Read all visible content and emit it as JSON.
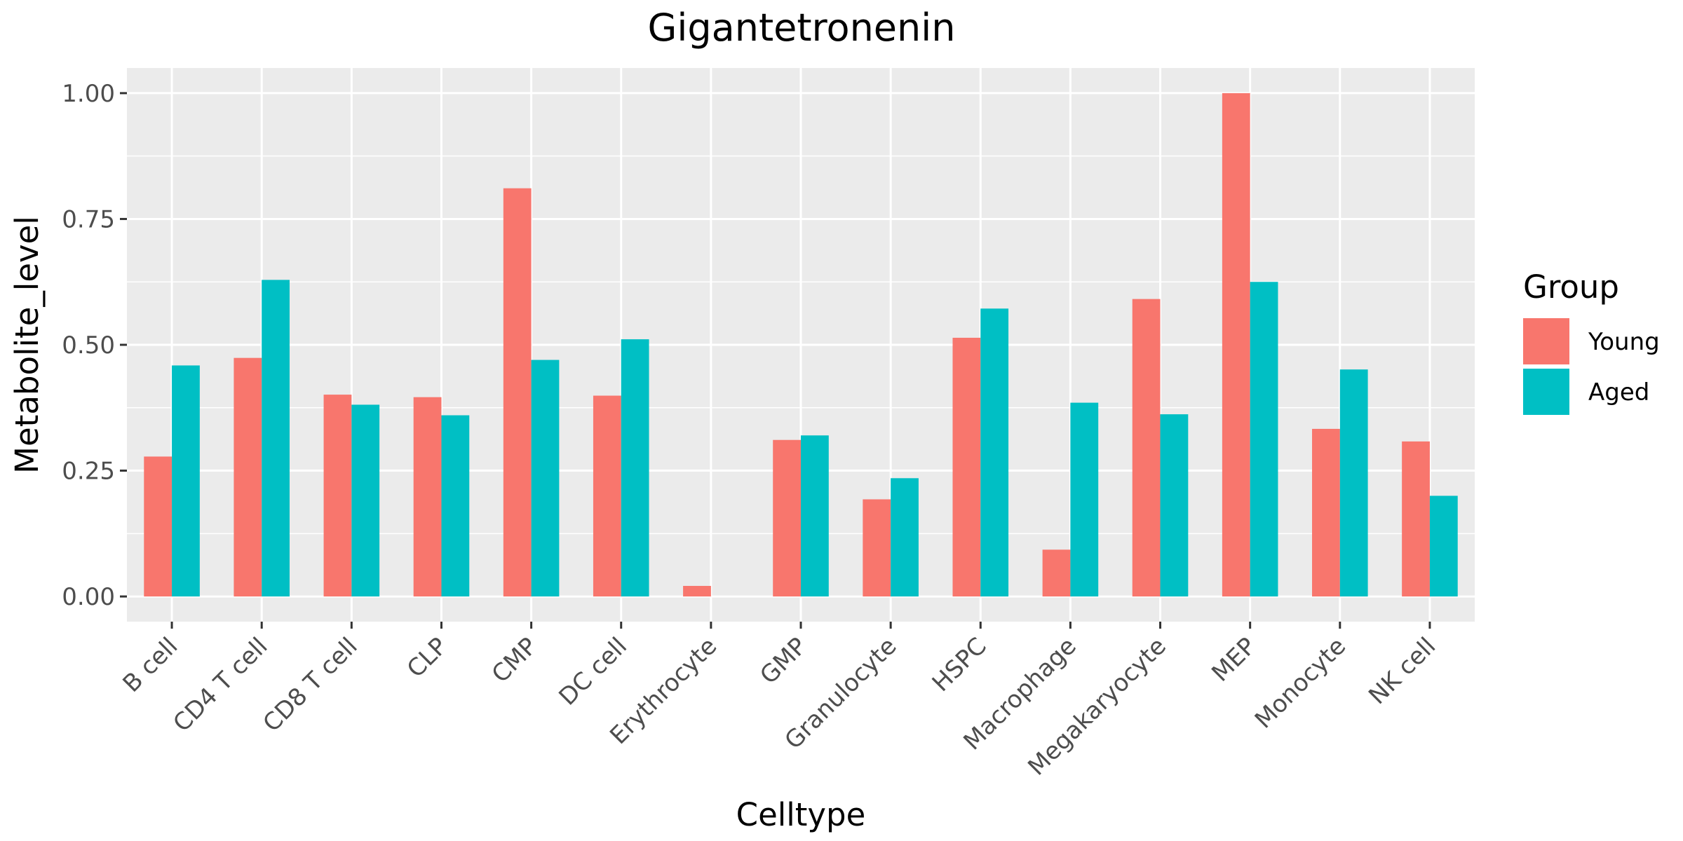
{
  "chart_data": {
    "type": "bar",
    "title": "Gigantetronenin",
    "xlabel": "Celltype",
    "ylabel": "Metabolite_level",
    "ylim": [
      -0.05,
      1.05
    ],
    "yticks": [
      0.0,
      0.25,
      0.5,
      0.75,
      1.0
    ],
    "ytick_labels": [
      "0.00",
      "0.25",
      "0.50",
      "0.75",
      "1.00"
    ],
    "grid": true,
    "legend": {
      "title": "Group",
      "position": "right"
    },
    "categories": [
      "B cell",
      "CD4 T cell",
      "CD8 T cell",
      "CLP",
      "CMP",
      "DC cell",
      "Erythrocyte",
      "GMP",
      "Granulocyte",
      "HSPC",
      "Macrophage",
      "Megakaryocyte",
      "MEP",
      "Monocyte",
      "NK cell"
    ],
    "series": [
      {
        "name": "Young",
        "color": "#F8766D",
        "values": [
          0.278,
          0.474,
          0.401,
          0.396,
          0.811,
          0.399,
          0.021,
          0.311,
          0.193,
          0.514,
          0.093,
          0.591,
          1.0,
          0.333,
          0.308
        ]
      },
      {
        "name": "Aged",
        "color": "#00BFC4",
        "values": [
          0.459,
          0.629,
          0.381,
          0.36,
          0.47,
          0.511,
          null,
          0.32,
          0.235,
          0.572,
          0.385,
          0.362,
          0.625,
          0.451,
          0.2
        ]
      }
    ]
  }
}
